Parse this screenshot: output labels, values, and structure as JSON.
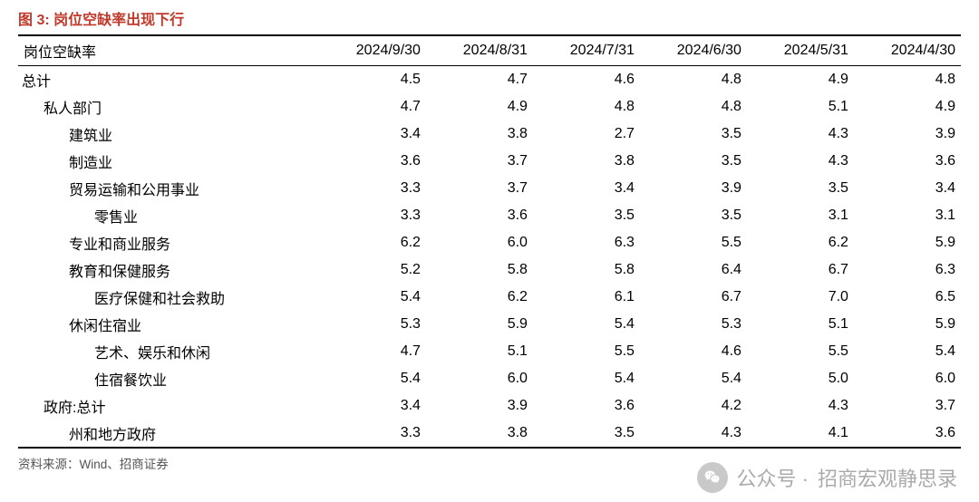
{
  "figure": {
    "number_label": "图 3:",
    "title": "岗位空缺率出现下行"
  },
  "table": {
    "header_label": "岗位空缺率",
    "columns": [
      "2024/9/30",
      "2024/8/31",
      "2024/7/31",
      "2024/6/30",
      "2024/5/31",
      "2024/4/30"
    ],
    "rows": [
      {
        "label": "总计",
        "indent": 0,
        "values": [
          "4.5",
          "4.7",
          "4.6",
          "4.8",
          "4.9",
          "4.8"
        ]
      },
      {
        "label": "私人部门",
        "indent": 1,
        "values": [
          "4.7",
          "4.9",
          "4.8",
          "4.8",
          "5.1",
          "4.9"
        ]
      },
      {
        "label": "建筑业",
        "indent": 2,
        "values": [
          "3.4",
          "3.8",
          "2.7",
          "3.5",
          "4.3",
          "3.9"
        ]
      },
      {
        "label": "制造业",
        "indent": 2,
        "values": [
          "3.6",
          "3.7",
          "3.8",
          "3.5",
          "4.3",
          "3.6"
        ]
      },
      {
        "label": "贸易运输和公用事业",
        "indent": 2,
        "values": [
          "3.3",
          "3.7",
          "3.4",
          "3.9",
          "3.5",
          "3.4"
        ]
      },
      {
        "label": "零售业",
        "indent": 3,
        "values": [
          "3.3",
          "3.6",
          "3.5",
          "3.5",
          "3.1",
          "3.1"
        ]
      },
      {
        "label": "专业和商业服务",
        "indent": 2,
        "values": [
          "6.2",
          "6.0",
          "6.3",
          "5.5",
          "6.2",
          "5.9"
        ]
      },
      {
        "label": "教育和保健服务",
        "indent": 2,
        "values": [
          "5.2",
          "5.8",
          "5.8",
          "6.4",
          "6.7",
          "6.3"
        ]
      },
      {
        "label": "医疗保健和社会救助",
        "indent": 3,
        "values": [
          "5.4",
          "6.2",
          "6.1",
          "6.7",
          "7.0",
          "6.5"
        ]
      },
      {
        "label": "休闲住宿业",
        "indent": 2,
        "values": [
          "5.3",
          "5.9",
          "5.4",
          "5.3",
          "5.1",
          "5.9"
        ]
      },
      {
        "label": "艺术、娱乐和休闲",
        "indent": 3,
        "values": [
          "4.7",
          "5.1",
          "5.5",
          "4.6",
          "5.5",
          "5.4"
        ]
      },
      {
        "label": "住宿餐饮业",
        "indent": 3,
        "values": [
          "5.4",
          "6.0",
          "5.4",
          "5.4",
          "5.0",
          "6.0"
        ]
      },
      {
        "label": "政府:总计",
        "indent": 1,
        "values": [
          "3.4",
          "3.9",
          "3.6",
          "4.2",
          "4.3",
          "3.7"
        ]
      },
      {
        "label": "州和地方政府",
        "indent": 2,
        "values": [
          "3.3",
          "3.8",
          "3.5",
          "4.3",
          "4.1",
          "3.6"
        ]
      }
    ]
  },
  "source": "资料来源：Wind、招商证券",
  "watermark": {
    "prefix": "公众号 ·",
    "name": "招商宏观静思录"
  }
}
